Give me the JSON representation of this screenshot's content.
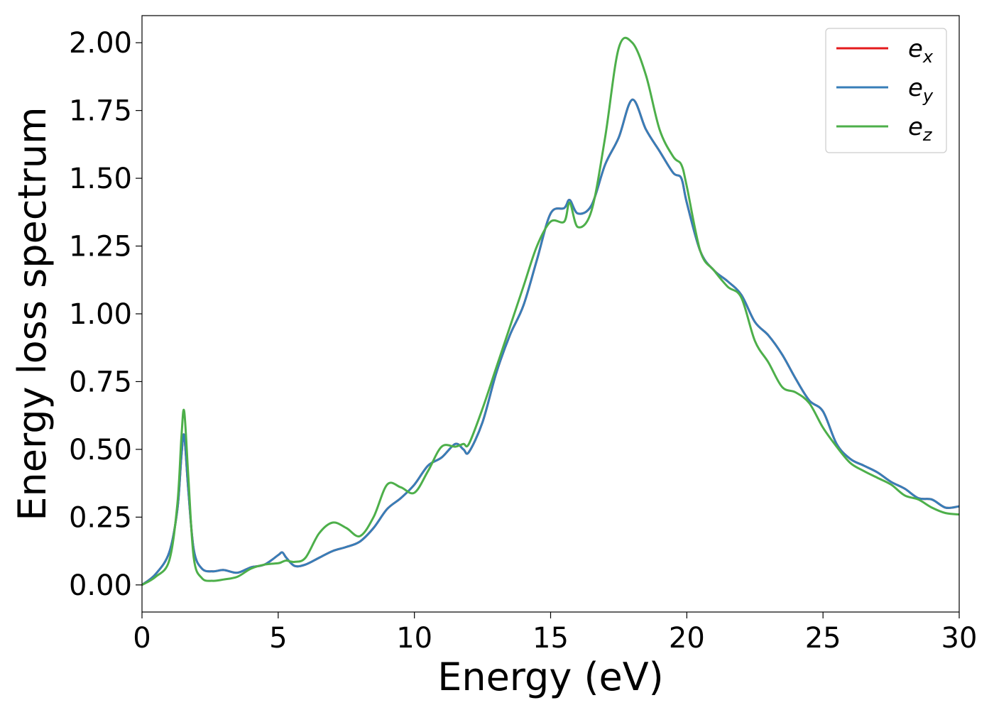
{
  "chart_data": {
    "type": "line",
    "title": "",
    "xlabel": "Energy (eV)",
    "ylabel": "Energy loss spectrum",
    "xlim": [
      0,
      30
    ],
    "ylim": [
      -0.1,
      2.1
    ],
    "xticks": [
      0,
      5,
      10,
      15,
      20,
      25,
      30
    ],
    "yticks": [
      0.0,
      0.25,
      0.5,
      0.75,
      1.0,
      1.25,
      1.5,
      1.75,
      2.0
    ],
    "xtick_labels": [
      "0",
      "5",
      "10",
      "15",
      "20",
      "25",
      "30"
    ],
    "ytick_labels": [
      "0.00",
      "0.25",
      "0.50",
      "0.75",
      "1.00",
      "1.25",
      "1.50",
      "1.75",
      "2.00"
    ],
    "grid": false,
    "legend": "top-right",
    "x": [
      0,
      0.5,
      1.0,
      1.3,
      1.45,
      1.55,
      1.7,
      1.9,
      2.2,
      2.6,
      3.0,
      3.5,
      4.0,
      4.5,
      5.0,
      5.15,
      5.3,
      5.6,
      6.0,
      6.5,
      7.0,
      7.5,
      8.0,
      8.5,
      9.0,
      9.5,
      10.0,
      10.5,
      11.0,
      11.5,
      11.8,
      12.0,
      12.5,
      13.0,
      13.5,
      14.0,
      14.5,
      15.0,
      15.5,
      15.7,
      16.0,
      16.5,
      17.0,
      17.5,
      18.0,
      18.5,
      19.0,
      19.5,
      19.8,
      20.0,
      20.5,
      21.0,
      21.5,
      22.0,
      22.5,
      23.0,
      23.5,
      24.0,
      24.5,
      25.0,
      25.5,
      26.0,
      26.5,
      27.0,
      27.5,
      28.0,
      28.5,
      29.0,
      29.5,
      30.0
    ],
    "series": [
      {
        "name": "e_x",
        "color": "#e41a1c",
        "values": [
          0.0,
          0.04,
          0.12,
          0.28,
          0.48,
          0.55,
          0.35,
          0.13,
          0.06,
          0.05,
          0.055,
          0.045,
          0.065,
          0.075,
          0.11,
          0.12,
          0.1,
          0.07,
          0.075,
          0.1,
          0.125,
          0.14,
          0.16,
          0.21,
          0.28,
          0.32,
          0.37,
          0.44,
          0.47,
          0.52,
          0.5,
          0.49,
          0.6,
          0.78,
          0.92,
          1.03,
          1.2,
          1.37,
          1.39,
          1.42,
          1.37,
          1.4,
          1.55,
          1.65,
          1.79,
          1.68,
          1.6,
          1.52,
          1.5,
          1.41,
          1.23,
          1.16,
          1.12,
          1.07,
          0.97,
          0.92,
          0.85,
          0.76,
          0.68,
          0.64,
          0.52,
          0.465,
          0.44,
          0.415,
          0.38,
          0.355,
          0.32,
          0.315,
          0.285,
          0.29
        ]
      },
      {
        "name": "e_y",
        "color": "#377eb8",
        "values": [
          0.0,
          0.04,
          0.12,
          0.28,
          0.48,
          0.55,
          0.35,
          0.13,
          0.06,
          0.05,
          0.055,
          0.045,
          0.065,
          0.075,
          0.11,
          0.12,
          0.1,
          0.07,
          0.075,
          0.1,
          0.125,
          0.14,
          0.16,
          0.21,
          0.28,
          0.32,
          0.37,
          0.44,
          0.47,
          0.52,
          0.5,
          0.49,
          0.6,
          0.78,
          0.92,
          1.03,
          1.2,
          1.37,
          1.39,
          1.42,
          1.37,
          1.4,
          1.55,
          1.65,
          1.79,
          1.68,
          1.6,
          1.52,
          1.5,
          1.41,
          1.23,
          1.16,
          1.12,
          1.07,
          0.97,
          0.92,
          0.85,
          0.76,
          0.68,
          0.64,
          0.52,
          0.465,
          0.44,
          0.415,
          0.38,
          0.355,
          0.32,
          0.315,
          0.285,
          0.29
        ]
      },
      {
        "name": "e_z",
        "color": "#4daf4a",
        "values": [
          0.0,
          0.03,
          0.09,
          0.3,
          0.55,
          0.64,
          0.4,
          0.1,
          0.025,
          0.015,
          0.02,
          0.03,
          0.06,
          0.075,
          0.08,
          0.085,
          0.09,
          0.085,
          0.1,
          0.19,
          0.23,
          0.21,
          0.18,
          0.25,
          0.37,
          0.36,
          0.34,
          0.42,
          0.51,
          0.51,
          0.52,
          0.52,
          0.65,
          0.8,
          0.95,
          1.1,
          1.25,
          1.34,
          1.34,
          1.41,
          1.32,
          1.38,
          1.65,
          1.98,
          2.0,
          1.88,
          1.68,
          1.58,
          1.55,
          1.47,
          1.23,
          1.16,
          1.1,
          1.06,
          0.9,
          0.82,
          0.73,
          0.71,
          0.67,
          0.58,
          0.51,
          0.45,
          0.42,
          0.395,
          0.37,
          0.33,
          0.315,
          0.285,
          0.265,
          0.26
        ]
      }
    ]
  },
  "legend_items": [
    {
      "base": "e",
      "sub": "x",
      "color": "#e41a1c"
    },
    {
      "base": "e",
      "sub": "y",
      "color": "#377eb8"
    },
    {
      "base": "e",
      "sub": "z",
      "color": "#4daf4a"
    }
  ]
}
